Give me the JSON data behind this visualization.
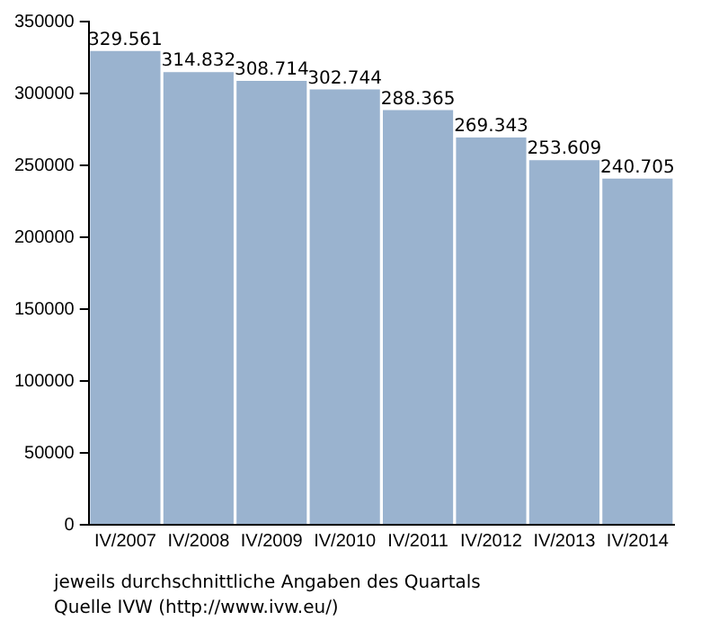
{
  "chart_data": {
    "type": "bar",
    "categories": [
      "IV/2007",
      "IV/2008",
      "IV/2009",
      "IV/2010",
      "IV/2011",
      "IV/2012",
      "IV/2013",
      "IV/2014"
    ],
    "values": [
      329561,
      314832,
      308714,
      302744,
      288365,
      269343,
      253609,
      240705
    ],
    "value_labels": [
      "329.561",
      "314.832",
      "308.714",
      "302.744",
      "288.365",
      "269.343",
      "253.609",
      "240.705"
    ],
    "color": "#9ab3cf",
    "ylim": [
      0,
      350000
    ],
    "yticks": [
      0,
      50000,
      100000,
      150000,
      200000,
      250000,
      300000,
      350000
    ],
    "grid": false,
    "annotations": [
      "jeweils durchschnittliche Angaben des Quartals",
      "Quelle IVW (http://www.ivw.eu/)"
    ]
  }
}
